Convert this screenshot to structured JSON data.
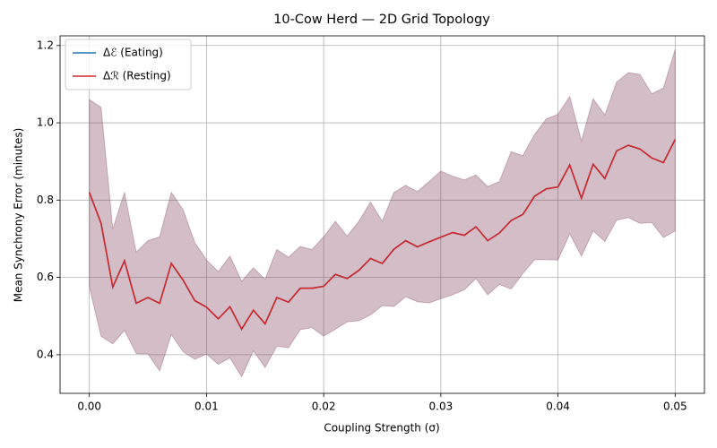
{
  "chart_data": {
    "type": "line",
    "title": "10-Cow Herd — 2D Grid Topology",
    "xlabel": "Coupling Strength (σ)",
    "ylabel": "Mean Synchrony Error (minutes)",
    "x": [
      0,
      0.001,
      0.002,
      0.003,
      0.004,
      0.005,
      0.006,
      0.007,
      0.008,
      0.009,
      0.01,
      0.011,
      0.012,
      0.013,
      0.014,
      0.015,
      0.016,
      0.017,
      0.018,
      0.019,
      0.02,
      0.021,
      0.022,
      0.023,
      0.024,
      0.025,
      0.026,
      0.027,
      0.028,
      0.029,
      0.03,
      0.031,
      0.032,
      0.033,
      0.034,
      0.035,
      0.036,
      0.037,
      0.038,
      0.039,
      0.04,
      0.041,
      0.042,
      0.043,
      0.044,
      0.045,
      0.046,
      0.047,
      0.048,
      0.049,
      0.05
    ],
    "series": [
      {
        "name": "Δℰ (Eating)",
        "color": "#1f77b4",
        "values": [
          0.82,
          0.74,
          0.575,
          0.643,
          0.533,
          0.548,
          0.533,
          0.636,
          0.593,
          0.54,
          0.523,
          0.493,
          0.524,
          0.466,
          0.515,
          0.48,
          0.548,
          0.536,
          0.572,
          0.572,
          0.577,
          0.608,
          0.597,
          0.618,
          0.649,
          0.636,
          0.673,
          0.695,
          0.679,
          0.692,
          0.704,
          0.716,
          0.709,
          0.731,
          0.695,
          0.715,
          0.747,
          0.763,
          0.81,
          0.829,
          0.834,
          0.891,
          0.805,
          0.893,
          0.856,
          0.927,
          0.942,
          0.932,
          0.909,
          0.897,
          0.957
        ],
        "upper": [
          1.06,
          1.04,
          0.725,
          0.82,
          0.665,
          0.695,
          0.705,
          0.82,
          0.775,
          0.69,
          0.645,
          0.615,
          0.655,
          0.59,
          0.625,
          0.595,
          0.672,
          0.652,
          0.68,
          0.672,
          0.705,
          0.745,
          0.707,
          0.745,
          0.795,
          0.745,
          0.82,
          0.838,
          0.822,
          0.848,
          0.875,
          0.862,
          0.852,
          0.865,
          0.835,
          0.848,
          0.925,
          0.915,
          0.97,
          1.01,
          1.022,
          1.068,
          0.953,
          1.062,
          1.02,
          1.105,
          1.13,
          1.125,
          1.075,
          1.09,
          1.19
        ],
        "lower": [
          0.575,
          0.448,
          0.428,
          0.463,
          0.403,
          0.402,
          0.358,
          0.452,
          0.408,
          0.388,
          0.402,
          0.375,
          0.392,
          0.343,
          0.41,
          0.367,
          0.422,
          0.418,
          0.465,
          0.47,
          0.448,
          0.466,
          0.485,
          0.488,
          0.503,
          0.527,
          0.525,
          0.55,
          0.537,
          0.534,
          0.545,
          0.555,
          0.568,
          0.597,
          0.555,
          0.582,
          0.57,
          0.61,
          0.646,
          0.646,
          0.645,
          0.713,
          0.655,
          0.72,
          0.693,
          0.748,
          0.755,
          0.74,
          0.742,
          0.703,
          0.72
        ]
      },
      {
        "name": "Δℛ (Resting)",
        "color": "#d62728",
        "values": [
          0.82,
          0.74,
          0.575,
          0.643,
          0.533,
          0.548,
          0.533,
          0.636,
          0.593,
          0.54,
          0.523,
          0.493,
          0.524,
          0.466,
          0.515,
          0.48,
          0.548,
          0.536,
          0.572,
          0.572,
          0.577,
          0.608,
          0.597,
          0.618,
          0.649,
          0.636,
          0.673,
          0.695,
          0.679,
          0.692,
          0.704,
          0.716,
          0.709,
          0.731,
          0.695,
          0.715,
          0.747,
          0.763,
          0.81,
          0.829,
          0.834,
          0.891,
          0.805,
          0.893,
          0.856,
          0.927,
          0.942,
          0.932,
          0.909,
          0.897,
          0.957
        ],
        "upper": [
          1.06,
          1.04,
          0.725,
          0.82,
          0.665,
          0.695,
          0.705,
          0.82,
          0.775,
          0.69,
          0.645,
          0.615,
          0.655,
          0.59,
          0.625,
          0.595,
          0.672,
          0.652,
          0.68,
          0.672,
          0.705,
          0.745,
          0.707,
          0.745,
          0.795,
          0.745,
          0.82,
          0.838,
          0.822,
          0.848,
          0.875,
          0.862,
          0.852,
          0.865,
          0.835,
          0.848,
          0.925,
          0.915,
          0.97,
          1.01,
          1.022,
          1.068,
          0.953,
          1.062,
          1.02,
          1.105,
          1.13,
          1.125,
          1.075,
          1.09,
          1.19
        ],
        "lower": [
          0.575,
          0.448,
          0.428,
          0.463,
          0.403,
          0.402,
          0.358,
          0.452,
          0.408,
          0.388,
          0.402,
          0.375,
          0.392,
          0.343,
          0.41,
          0.367,
          0.422,
          0.418,
          0.465,
          0.47,
          0.448,
          0.466,
          0.485,
          0.488,
          0.503,
          0.527,
          0.525,
          0.55,
          0.537,
          0.534,
          0.545,
          0.555,
          0.568,
          0.597,
          0.555,
          0.582,
          0.57,
          0.61,
          0.646,
          0.646,
          0.645,
          0.713,
          0.655,
          0.72,
          0.693,
          0.748,
          0.755,
          0.74,
          0.742,
          0.703,
          0.72
        ]
      }
    ],
    "xlim": [
      -0.0025,
      0.0525
    ],
    "xticks": [
      {
        "value": 0,
        "label": "0.00"
      },
      {
        "value": 0.01,
        "label": "0.01"
      },
      {
        "value": 0.02,
        "label": "0.02"
      },
      {
        "value": 0.03,
        "label": "0.03"
      },
      {
        "value": 0.04,
        "label": "0.04"
      },
      {
        "value": 0.05,
        "label": "0.05"
      }
    ],
    "ylim": [
      0.3,
      1.225
    ],
    "yticks": [
      0.4,
      0.6,
      0.8,
      {
        "value": 1.0,
        "label": "1.0"
      },
      1.2
    ],
    "grid": true,
    "legend": "upper left"
  }
}
